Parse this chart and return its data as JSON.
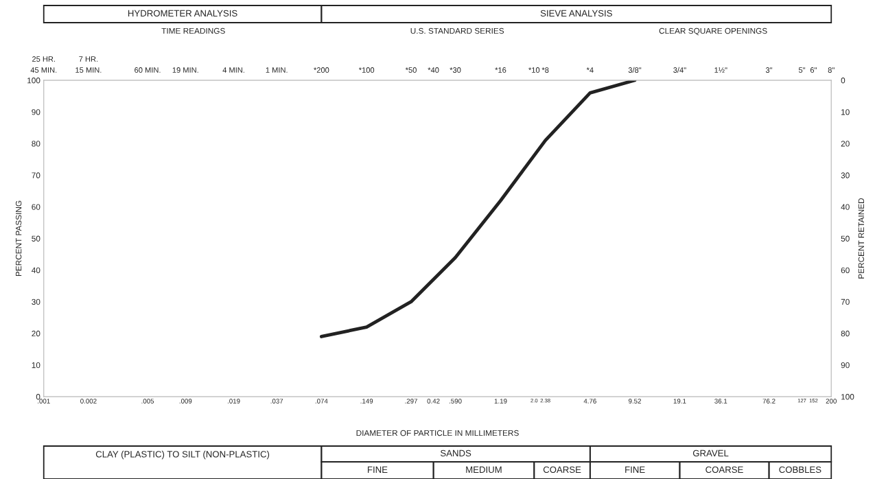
{
  "chart_data": {
    "type": "line",
    "xlabel": "DIAMETER OF PARTICLE IN MILLIMETERS",
    "ylabel": "PERCENT PASSING",
    "y2label": "PERCENT RETAINED",
    "log": "x",
    "x": [
      0.074,
      0.149,
      0.297,
      0.59,
      1.19,
      2.38,
      4.76,
      9.52
    ],
    "series": [
      {
        "color": "#222222",
        "values": [
          19,
          22,
          30,
          44,
          62,
          81,
          96,
          100
        ]
      }
    ],
    "xlim": [
      0.001,
      200
    ],
    "xticks": [
      {
        "value": 0.001,
        "label": ".001"
      },
      {
        "value": 0.002,
        "label": "0.002"
      },
      {
        "value": 0.005,
        "label": ".005"
      },
      {
        "value": 0.009,
        "label": ".009"
      },
      {
        "value": 0.019,
        "label": ".019"
      },
      {
        "value": 0.037,
        "label": ".037"
      },
      {
        "value": 0.074,
        "label": ".074"
      },
      {
        "value": 0.149,
        "label": ".149"
      },
      {
        "value": 0.297,
        "label": ".297"
      },
      {
        "value": 0.42,
        "label": "0.42"
      },
      {
        "value": 0.59,
        "label": ".590"
      },
      1.19,
      {
        "value": 2.0,
        "label": "2.0"
      },
      2.38,
      4.76,
      9.52,
      19.1,
      36.1,
      76.2,
      127,
      152,
      200
    ],
    "ylim": [
      0,
      100
    ],
    "yticks": [
      0,
      10,
      20,
      30,
      40,
      50,
      60,
      70,
      80,
      90,
      100
    ],
    "y2lim": [
      100,
      0
    ],
    "y2ticks": [
      0,
      10,
      20,
      30,
      40,
      50,
      60,
      70,
      80,
      90,
      100
    ],
    "annotations": [
      "HYDROMETER ANALYSIS",
      "SIEVE ANALYSIS",
      "TIME READINGS",
      "U.S. STANDARD SERIES",
      "CLEAR SQUARE OPENINGS",
      "CLAY (PLASTIC) TO SILT (NON-PLASTIC)",
      "SANDS",
      "FINE",
      "MEDIUM",
      "COARSE",
      "GRAVEL",
      "FINE",
      "COARSE",
      "COBBLES",
      "45 MIN.",
      "15 MIN.",
      "60 MIN.",
      "19 MIN.",
      "4 MIN.",
      "1 MIN.",
      "*200",
      "*100",
      "*50",
      "*40",
      "*30",
      "*16",
      "*10",
      "*8",
      "*4",
      "3/8\"",
      "3/4\"",
      "1½\"",
      "3\"",
      "5\"",
      "6\"",
      "8\"",
      "25 HR.",
      "7 HR."
    ]
  }
}
